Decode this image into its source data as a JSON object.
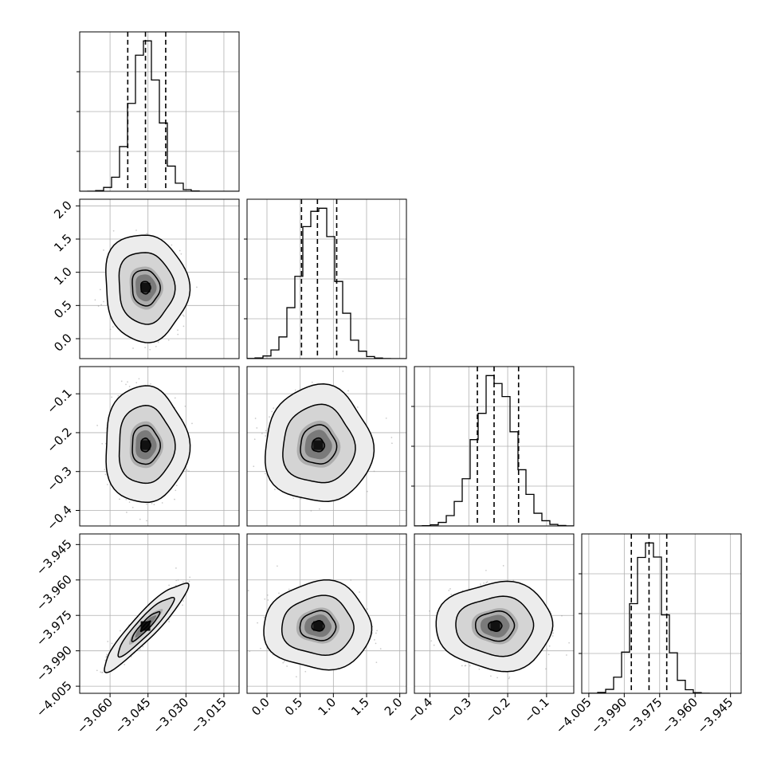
{
  "chart_data": {
    "type": "corner",
    "parameters": [
      {
        "range": [
          -3.072,
          -3.009
        ],
        "ticks": [
          -3.06,
          -3.045,
          -3.03,
          -3.015
        ],
        "tick_labels": [
          "−3.060",
          "−3.045",
          "−3.030",
          "−3.015"
        ],
        "quantiles": [
          -3.053,
          -3.046,
          -3.038
        ],
        "mean": -3.046,
        "sd": 0.0055
      },
      {
        "range": [
          -0.3,
          2.1
        ],
        "ticks": [
          0.0,
          0.5,
          1.0,
          1.5,
          2.0
        ],
        "tick_labels": [
          "0.0",
          "0.5",
          "1.0",
          "1.5",
          "2.0"
        ],
        "quantiles": [
          0.52,
          0.76,
          1.05
        ],
        "mean": 0.77,
        "sd": 0.27
      },
      {
        "range": [
          -0.44,
          -0.03
        ],
        "ticks": [
          -0.4,
          -0.3,
          -0.2,
          -0.1
        ],
        "tick_labels": [
          "−0.4",
          "−0.3",
          "−0.2",
          "−0.1"
        ],
        "quantiles": [
          -0.278,
          -0.235,
          -0.172
        ],
        "mean": -0.232,
        "sd": 0.05
      },
      {
        "range": [
          -4.008,
          -3.9405
        ],
        "ticks": [
          -4.005,
          -3.99,
          -3.975,
          -3.96,
          -3.945
        ],
        "tick_labels": [
          "−4.005",
          "−3.990",
          "−3.975",
          "−3.960",
          "−3.945"
        ],
        "quantiles": [
          -3.987,
          -3.9795,
          -3.972
        ],
        "mean": -3.9795,
        "sd": 0.0062
      }
    ],
    "correlations": {
      "1-0": -0.05,
      "2-0": 0.0,
      "2-1": 0.0,
      "3-0": 0.92,
      "3-1": 0.0,
      "3-2": 0.0
    },
    "histogram_bins": 20,
    "contour_levels": [
      0.39,
      0.86,
      0.99
    ],
    "grid": true,
    "quantile_lines": "dashed",
    "colors": {
      "lines": "#000000",
      "points": "#9a9a9a",
      "grid": "#b0b0b0"
    }
  }
}
